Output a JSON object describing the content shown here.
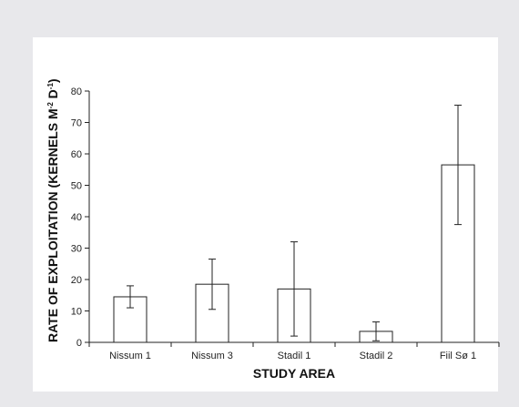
{
  "chart_data": {
    "type": "bar",
    "title": "",
    "xlabel": "STUDY AREA",
    "ylabel": "RATE OF EXPLOITATION (KERNELS M",
    "ylabel_sup1": "-2",
    "ylabel_mid": " D",
    "ylabel_sup2": "-1",
    "ylabel_end": ")",
    "ylim": [
      0,
      80
    ],
    "yticks": [
      0,
      10,
      20,
      30,
      40,
      50,
      60,
      70,
      80
    ],
    "categories": [
      "Nissum 1",
      "Nissum 3",
      "Stadil 1",
      "Stadil 2",
      "Fiil Sø 1"
    ],
    "values": [
      14.5,
      18.5,
      17,
      3.5,
      56.5
    ],
    "errors": [
      3.5,
      8,
      15,
      3,
      19
    ],
    "grid": false,
    "legend": "none",
    "bar_fill": "#ffffff",
    "bar_stroke": "#222222"
  }
}
